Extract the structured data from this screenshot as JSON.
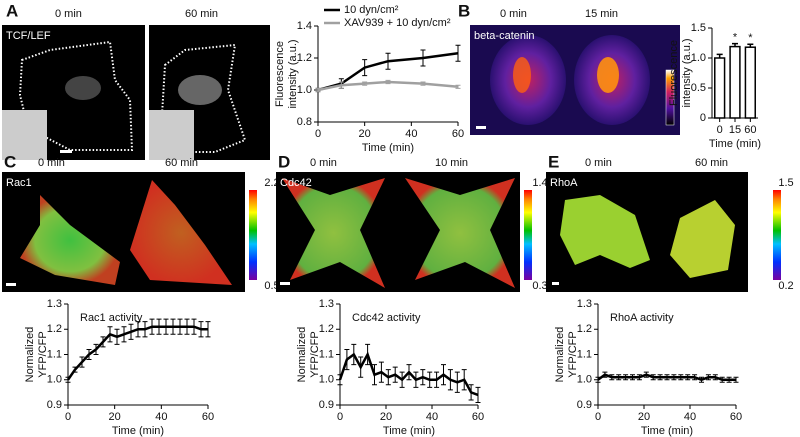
{
  "panels": [
    {
      "label": "A",
      "captions": [
        "0 min",
        "60 min"
      ],
      "stain": "TCF/LEF"
    },
    {
      "label": "B",
      "captions": [
        "0 min",
        "15 min"
      ],
      "stain": "beta-catenin"
    },
    {
      "label": "C",
      "captions": [
        "0 min",
        "60 min"
      ],
      "stain": "Rac1",
      "colorbar": [
        2.2,
        0.5
      ]
    },
    {
      "label": "D",
      "captions": [
        "0 min",
        "10 min"
      ],
      "stain": "Cdc42",
      "colorbar": [
        1.4,
        0.3
      ]
    },
    {
      "label": "E",
      "captions": [
        "0 min",
        "60 min"
      ],
      "stain": "RhoA",
      "colorbar": [
        1.5,
        0.2
      ]
    }
  ],
  "chart_data": [
    {
      "type": "line",
      "ylabel": [
        "Fluorescence",
        "intensity (a.u.)"
      ],
      "xlabel": "Time (min)",
      "legend": "upper left",
      "x": [
        0,
        10,
        20,
        30,
        45,
        60
      ],
      "series": [
        {
          "name": "10 dyn/cm²",
          "color": "#000000",
          "values": [
            1.0,
            1.04,
            1.14,
            1.18,
            1.2,
            1.23
          ],
          "errors": [
            0.01,
            0.03,
            0.05,
            0.05,
            0.05,
            0.05
          ]
        },
        {
          "name": "XAV939 + 10 dyn/cm²",
          "color": "#a0a0a0",
          "values": [
            1.0,
            1.03,
            1.04,
            1.05,
            1.04,
            1.02
          ],
          "errors": [
            0.01,
            0.02,
            0.01,
            0.01,
            0.01,
            0.01
          ]
        }
      ],
      "xlim": [
        0,
        60
      ],
      "xticks": [
        0,
        20,
        40,
        60
      ],
      "ylim": [
        0.8,
        1.4
      ],
      "yticks": [
        0.8,
        {
          "value": 1.0,
          "label": "1.0"
        },
        1.2,
        1.4
      ]
    },
    {
      "type": "bar",
      "ylabel": [
        "Fluorescence",
        "intensity (a.u.)"
      ],
      "xlabel": "Time (min)",
      "categories": [
        "0",
        "15",
        "60"
      ],
      "values": [
        1.0,
        1.19,
        1.18
      ],
      "errors": [
        0.06,
        0.05,
        0.05
      ],
      "color": "#ffffff",
      "annotations": [
        {
          "x": "15",
          "text": "*"
        },
        {
          "x": "60",
          "text": "*"
        }
      ],
      "ylim": [
        0,
        1.5
      ],
      "yticks": [
        0,
        0.5,
        {
          "value": 1.0,
          "label": "1.0"
        },
        1.5
      ]
    },
    {
      "type": "line",
      "title": "Rac1 activity",
      "ylabel": [
        "Normalized",
        "YFP/CFP"
      ],
      "xlabel": "Time (min)",
      "x": [
        0,
        3,
        6,
        9,
        12,
        15,
        18,
        21,
        24,
        27,
        30,
        33,
        36,
        39,
        42,
        45,
        48,
        51,
        54,
        57,
        60
      ],
      "series": [
        {
          "name": "Rac1",
          "color": "#000000",
          "values": [
            1.0,
            1.04,
            1.07,
            1.1,
            1.12,
            1.15,
            1.18,
            1.17,
            1.18,
            1.19,
            1.2,
            1.2,
            1.21,
            1.21,
            1.21,
            1.21,
            1.21,
            1.21,
            1.21,
            1.2,
            1.2
          ],
          "errors": [
            0.01,
            0.01,
            0.02,
            0.02,
            0.02,
            0.02,
            0.03,
            0.03,
            0.03,
            0.03,
            0.03,
            0.03,
            0.03,
            0.03,
            0.03,
            0.03,
            0.03,
            0.03,
            0.03,
            0.03,
            0.03
          ]
        }
      ],
      "xlim": [
        0,
        60
      ],
      "xticks": [
        0,
        20,
        40,
        60
      ],
      "ylim": [
        0.9,
        1.3
      ],
      "yticks": [
        0.9,
        {
          "value": 1.0,
          "label": "1.0"
        },
        1.1,
        1.2,
        1.3
      ]
    },
    {
      "type": "line",
      "title": "Cdc42 activity",
      "ylabel": [
        "Normalized",
        "YFP/CFP"
      ],
      "xlabel": "Time (min)",
      "x": [
        0,
        3,
        6,
        9,
        12,
        15,
        18,
        21,
        24,
        27,
        30,
        33,
        36,
        39,
        42,
        45,
        48,
        51,
        54,
        57,
        60
      ],
      "series": [
        {
          "name": "Cdc42",
          "color": "#000000",
          "values": [
            1.0,
            1.08,
            1.1,
            1.05,
            1.1,
            1.02,
            1.03,
            1.01,
            1.02,
            1.0,
            1.03,
            1.0,
            1.01,
            1.0,
            1.0,
            1.02,
            1.0,
            0.99,
            1.0,
            0.95,
            0.94
          ],
          "errors": [
            0.02,
            0.04,
            0.04,
            0.04,
            0.04,
            0.04,
            0.04,
            0.03,
            0.03,
            0.03,
            0.03,
            0.03,
            0.03,
            0.03,
            0.03,
            0.04,
            0.04,
            0.04,
            0.04,
            0.03,
            0.03
          ]
        }
      ],
      "xlim": [
        0,
        60
      ],
      "xticks": [
        0,
        20,
        40,
        60
      ],
      "ylim": [
        0.9,
        1.3
      ],
      "yticks": [
        0.9,
        {
          "value": 1.0,
          "label": "1.0"
        },
        1.1,
        1.2,
        1.3
      ]
    },
    {
      "type": "line",
      "title": "RhoA activity",
      "ylabel": [
        "Normalized",
        "YFP/CFP"
      ],
      "xlabel": "Time (min)",
      "x": [
        0,
        3,
        6,
        9,
        12,
        15,
        18,
        21,
        24,
        27,
        30,
        33,
        36,
        39,
        42,
        45,
        48,
        51,
        54,
        57,
        60
      ],
      "series": [
        {
          "name": "RhoA",
          "color": "#000000",
          "values": [
            1.0,
            1.02,
            1.01,
            1.01,
            1.01,
            1.01,
            1.01,
            1.02,
            1.01,
            1.01,
            1.01,
            1.01,
            1.01,
            1.01,
            1.01,
            1.0,
            1.01,
            1.01,
            1.0,
            1.0,
            1.0
          ],
          "errors": [
            0.01,
            0.01,
            0.01,
            0.01,
            0.01,
            0.01,
            0.01,
            0.01,
            0.01,
            0.01,
            0.01,
            0.01,
            0.01,
            0.01,
            0.01,
            0.01,
            0.01,
            0.01,
            0.01,
            0.01,
            0.01
          ]
        }
      ],
      "xlim": [
        0,
        60
      ],
      "xticks": [
        0,
        20,
        40,
        60
      ],
      "ylim": [
        0.9,
        1.3
      ],
      "yticks": [
        0.9,
        {
          "value": 1.0,
          "label": "1.0"
        },
        1.1,
        1.2,
        1.3
      ]
    }
  ]
}
